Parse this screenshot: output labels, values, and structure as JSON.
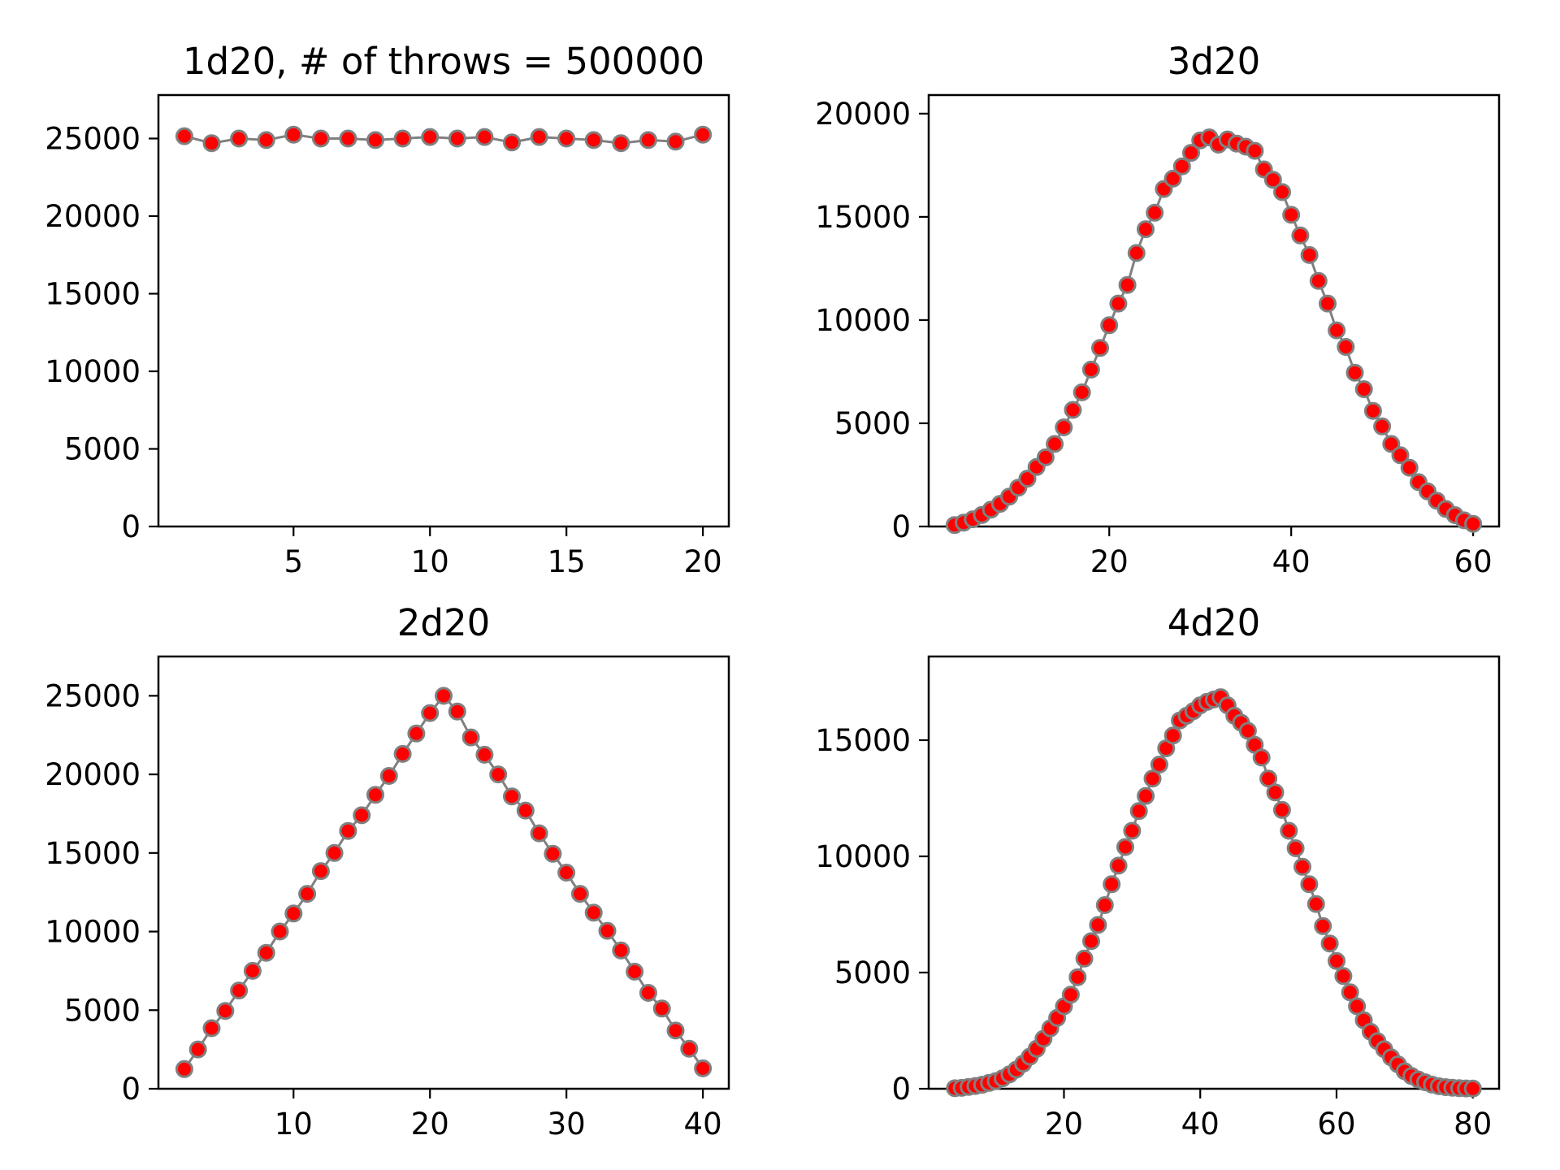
{
  "style": {
    "marker_color": "#ff0000",
    "marker_edge_color": "#808080",
    "line_color": "#808080",
    "axes_color": "#000000"
  },
  "chart_data": [
    {
      "type": "line",
      "title": "1d20, # of throws = 500000",
      "xlabel": "",
      "ylabel": "",
      "xlim": [
        0.05,
        20.95
      ],
      "ylim": [
        0,
        27800
      ],
      "xticks": [
        5,
        10,
        15,
        20
      ],
      "yticks": [
        0,
        5000,
        10000,
        15000,
        20000,
        25000
      ],
      "grid": false,
      "x": [
        1,
        2,
        3,
        4,
        5,
        6,
        7,
        8,
        9,
        10,
        11,
        12,
        13,
        14,
        15,
        16,
        17,
        18,
        19,
        20
      ],
      "series": [
        {
          "values": [
            25150,
            24700,
            25000,
            24900,
            25250,
            25000,
            25000,
            24900,
            25000,
            25100,
            25000,
            25100,
            24750,
            25100,
            25000,
            24900,
            24700,
            24900,
            24800,
            25250
          ]
        }
      ]
    },
    {
      "type": "line",
      "title": "3d20",
      "xlabel": "",
      "ylabel": "",
      "xlim": [
        0.15,
        62.85
      ],
      "ylim": [
        0,
        20900
      ],
      "xticks": [
        20,
        40,
        60
      ],
      "yticks": [
        0,
        5000,
        10000,
        15000,
        20000
      ],
      "grid": false,
      "x": [
        3,
        4,
        5,
        6,
        7,
        8,
        9,
        10,
        11,
        12,
        13,
        14,
        15,
        16,
        17,
        18,
        19,
        20,
        21,
        22,
        23,
        24,
        25,
        26,
        27,
        28,
        29,
        30,
        31,
        32,
        33,
        34,
        35,
        36,
        37,
        38,
        39,
        40,
        41,
        42,
        43,
        44,
        45,
        46,
        47,
        48,
        49,
        50,
        51,
        52,
        53,
        54,
        55,
        56,
        57,
        58,
        59,
        60
      ],
      "series": [
        {
          "values": [
            70,
            190,
            350,
            560,
            820,
            1100,
            1450,
            1880,
            2320,
            2880,
            3350,
            4000,
            4800,
            5650,
            6500,
            7600,
            8650,
            9750,
            10800,
            11700,
            13250,
            14400,
            15200,
            16350,
            16850,
            17450,
            18100,
            18700,
            18850,
            18500,
            18750,
            18550,
            18400,
            18200,
            17300,
            16800,
            16200,
            15100,
            14100,
            13150,
            11900,
            10800,
            9500,
            8700,
            7450,
            6650,
            5600,
            4850,
            4000,
            3450,
            2850,
            2150,
            1700,
            1250,
            850,
            550,
            300,
            130
          ]
        }
      ]
    },
    {
      "type": "line",
      "title": "2d20",
      "xlabel": "",
      "ylabel": "",
      "xlim": [
        0.1,
        41.9
      ],
      "ylim": [
        0,
        27500
      ],
      "xticks": [
        10,
        20,
        30,
        40
      ],
      "yticks": [
        0,
        5000,
        10000,
        15000,
        20000,
        25000
      ],
      "grid": false,
      "x": [
        2,
        3,
        4,
        5,
        6,
        7,
        8,
        9,
        10,
        11,
        12,
        13,
        14,
        15,
        16,
        17,
        18,
        19,
        20,
        21,
        22,
        23,
        24,
        25,
        26,
        27,
        28,
        29,
        30,
        31,
        32,
        33,
        34,
        35,
        36,
        37,
        38,
        39,
        40
      ],
      "series": [
        {
          "values": [
            1250,
            2500,
            3850,
            4950,
            6250,
            7500,
            8650,
            10000,
            11150,
            12400,
            13850,
            15000,
            16400,
            17400,
            18700,
            19900,
            21300,
            22600,
            23900,
            25000,
            24000,
            22350,
            21250,
            20000,
            18600,
            17700,
            16250,
            14950,
            13750,
            12400,
            11200,
            10050,
            8800,
            7450,
            6100,
            5100,
            3700,
            2550,
            1300
          ]
        }
      ]
    },
    {
      "type": "line",
      "title": "4d20",
      "xlabel": "",
      "ylabel": "",
      "xlim": [
        0.15,
        83.85
      ],
      "ylim": [
        0,
        18600
      ],
      "xticks": [
        20,
        40,
        60,
        80
      ],
      "yticks": [
        0,
        5000,
        10000,
        15000
      ],
      "grid": false,
      "x": [
        4,
        5,
        6,
        7,
        8,
        9,
        10,
        11,
        12,
        13,
        14,
        15,
        16,
        17,
        18,
        19,
        20,
        21,
        22,
        23,
        24,
        25,
        26,
        27,
        28,
        29,
        30,
        31,
        32,
        33,
        34,
        35,
        36,
        37,
        38,
        39,
        40,
        41,
        42,
        43,
        44,
        45,
        46,
        47,
        48,
        49,
        50,
        51,
        52,
        53,
        54,
        55,
        56,
        57,
        58,
        59,
        60,
        61,
        62,
        63,
        64,
        65,
        66,
        67,
        68,
        69,
        70,
        71,
        72,
        73,
        74,
        75,
        76,
        77,
        78,
        79,
        80
      ],
      "series": [
        {
          "values": [
            20,
            40,
            80,
            120,
            170,
            250,
            330,
            450,
            620,
            820,
            1080,
            1380,
            1720,
            2150,
            2600,
            3050,
            3550,
            4050,
            4800,
            5600,
            6350,
            7050,
            7900,
            8800,
            9600,
            10400,
            11100,
            11950,
            12600,
            13350,
            13950,
            14650,
            15200,
            15850,
            16050,
            16250,
            16500,
            16650,
            16750,
            16850,
            16500,
            16050,
            15750,
            15400,
            14800,
            14250,
            13350,
            12750,
            12000,
            11100,
            10350,
            9550,
            8800,
            7950,
            7000,
            6250,
            5500,
            4850,
            4150,
            3550,
            2950,
            2450,
            2050,
            1700,
            1350,
            1050,
            750,
            550,
            400,
            280,
            180,
            110,
            70,
            45,
            25,
            15,
            10
          ]
        }
      ]
    }
  ]
}
